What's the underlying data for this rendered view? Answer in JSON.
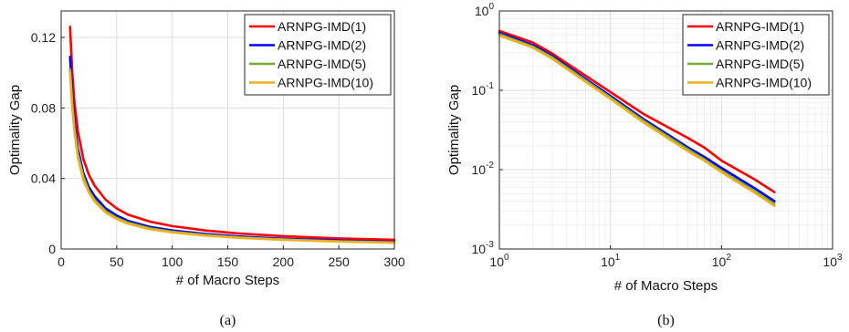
{
  "chart_data": [
    {
      "type": "line",
      "panel": "a",
      "caption": "(a)",
      "xlabel": "# of Macro Steps",
      "ylabel": "Optimality Gap",
      "xscale": "linear",
      "yscale": "linear",
      "xlim": [
        0,
        300
      ],
      "ylim": [
        0,
        0.135
      ],
      "xticks": [
        0,
        50,
        100,
        150,
        200,
        250,
        300
      ],
      "xtick_labels": [
        "0",
        "50",
        "100",
        "150",
        "200",
        "250",
        "300"
      ],
      "yticks": [
        0,
        0.04,
        0.08,
        0.12
      ],
      "ytick_labels": [
        "0",
        "0.04",
        "0.08",
        "0.12"
      ],
      "grid": true,
      "legend_position": "top-right",
      "series": [
        {
          "name": "ARNPG-IMD(1)",
          "color": "#ff0000",
          "x": [
            8,
            10,
            12,
            15,
            20,
            25,
            30,
            40,
            50,
            60,
            80,
            100,
            130,
            160,
            200,
            250,
            300
          ],
          "y": [
            0.126,
            0.1,
            0.083,
            0.067,
            0.051,
            0.042,
            0.036,
            0.028,
            0.023,
            0.0195,
            0.0155,
            0.013,
            0.0105,
            0.0088,
            0.0073,
            0.006,
            0.0052
          ]
        },
        {
          "name": "ARNPG-IMD(2)",
          "color": "#0000ff",
          "x": [
            8,
            10,
            12,
            15,
            20,
            25,
            30,
            40,
            50,
            60,
            80,
            100,
            130,
            160,
            200,
            250,
            300
          ],
          "y": [
            0.109,
            0.087,
            0.072,
            0.057,
            0.043,
            0.035,
            0.03,
            0.023,
            0.019,
            0.016,
            0.0125,
            0.0105,
            0.0085,
            0.0071,
            0.0058,
            0.0048,
            0.004
          ]
        },
        {
          "name": "ARNPG-IMD(5)",
          "color": "#77ac30",
          "x": [
            8,
            10,
            12,
            15,
            20,
            25,
            30,
            40,
            50,
            60,
            80,
            100,
            130,
            160,
            200,
            250,
            300
          ],
          "y": [
            0.102,
            0.082,
            0.068,
            0.054,
            0.041,
            0.033,
            0.028,
            0.0215,
            0.0177,
            0.015,
            0.0117,
            0.0098,
            0.0079,
            0.0066,
            0.0054,
            0.0044,
            0.0037
          ]
        },
        {
          "name": "ARNPG-IMD(10)",
          "color": "#edb120",
          "x": [
            8,
            10,
            12,
            15,
            20,
            25,
            30,
            40,
            50,
            60,
            80,
            100,
            130,
            160,
            200,
            250,
            300
          ],
          "y": [
            0.1,
            0.08,
            0.066,
            0.052,
            0.039,
            0.032,
            0.027,
            0.0207,
            0.017,
            0.0144,
            0.0112,
            0.0094,
            0.0076,
            0.0063,
            0.0052,
            0.0042,
            0.0035
          ]
        }
      ]
    },
    {
      "type": "line",
      "panel": "b",
      "caption": "(b)",
      "xlabel": "# of Macro Steps",
      "ylabel": "Optimality Gap",
      "xscale": "log",
      "yscale": "log",
      "xlim": [
        1,
        1000
      ],
      "ylim": [
        0.001,
        1
      ],
      "xticks": [
        1,
        10,
        100,
        1000
      ],
      "xtick_labels": [
        {
          "base": "10",
          "exp": "0"
        },
        {
          "base": "10",
          "exp": "1"
        },
        {
          "base": "10",
          "exp": "2"
        },
        {
          "base": "10",
          "exp": "3"
        }
      ],
      "yticks": [
        0.001,
        0.01,
        0.1,
        1
      ],
      "ytick_labels": [
        {
          "base": "10",
          "exp": "-3"
        },
        {
          "base": "10",
          "exp": "-2"
        },
        {
          "base": "10",
          "exp": "-1"
        },
        {
          "base": "10",
          "exp": "0"
        }
      ],
      "grid": true,
      "legend_position": "top-right",
      "series": [
        {
          "name": "ARNPG-IMD(1)",
          "color": "#ff0000",
          "x": [
            1,
            2,
            3,
            5,
            10,
            20,
            50,
            70,
            100,
            200,
            300
          ],
          "y": [
            0.56,
            0.4,
            0.29,
            0.18,
            0.095,
            0.05,
            0.025,
            0.019,
            0.013,
            0.0075,
            0.0052
          ]
        },
        {
          "name": "ARNPG-IMD(2)",
          "color": "#0000ff",
          "x": [
            1,
            2,
            3,
            5,
            10,
            20,
            50,
            70,
            100,
            200,
            300
          ],
          "y": [
            0.53,
            0.37,
            0.27,
            0.165,
            0.085,
            0.043,
            0.019,
            0.0145,
            0.0105,
            0.0058,
            0.004
          ]
        },
        {
          "name": "ARNPG-IMD(5)",
          "color": "#77ac30",
          "x": [
            1,
            2,
            3,
            5,
            10,
            20,
            50,
            70,
            100,
            200,
            300
          ],
          "y": [
            0.51,
            0.355,
            0.26,
            0.158,
            0.081,
            0.041,
            0.018,
            0.0135,
            0.0097,
            0.0053,
            0.0037
          ]
        },
        {
          "name": "ARNPG-IMD(10)",
          "color": "#edb120",
          "x": [
            1,
            2,
            3,
            5,
            10,
            20,
            50,
            70,
            100,
            200,
            300
          ],
          "y": [
            0.49,
            0.345,
            0.25,
            0.152,
            0.078,
            0.039,
            0.017,
            0.013,
            0.0093,
            0.0051,
            0.0035
          ]
        }
      ]
    }
  ]
}
